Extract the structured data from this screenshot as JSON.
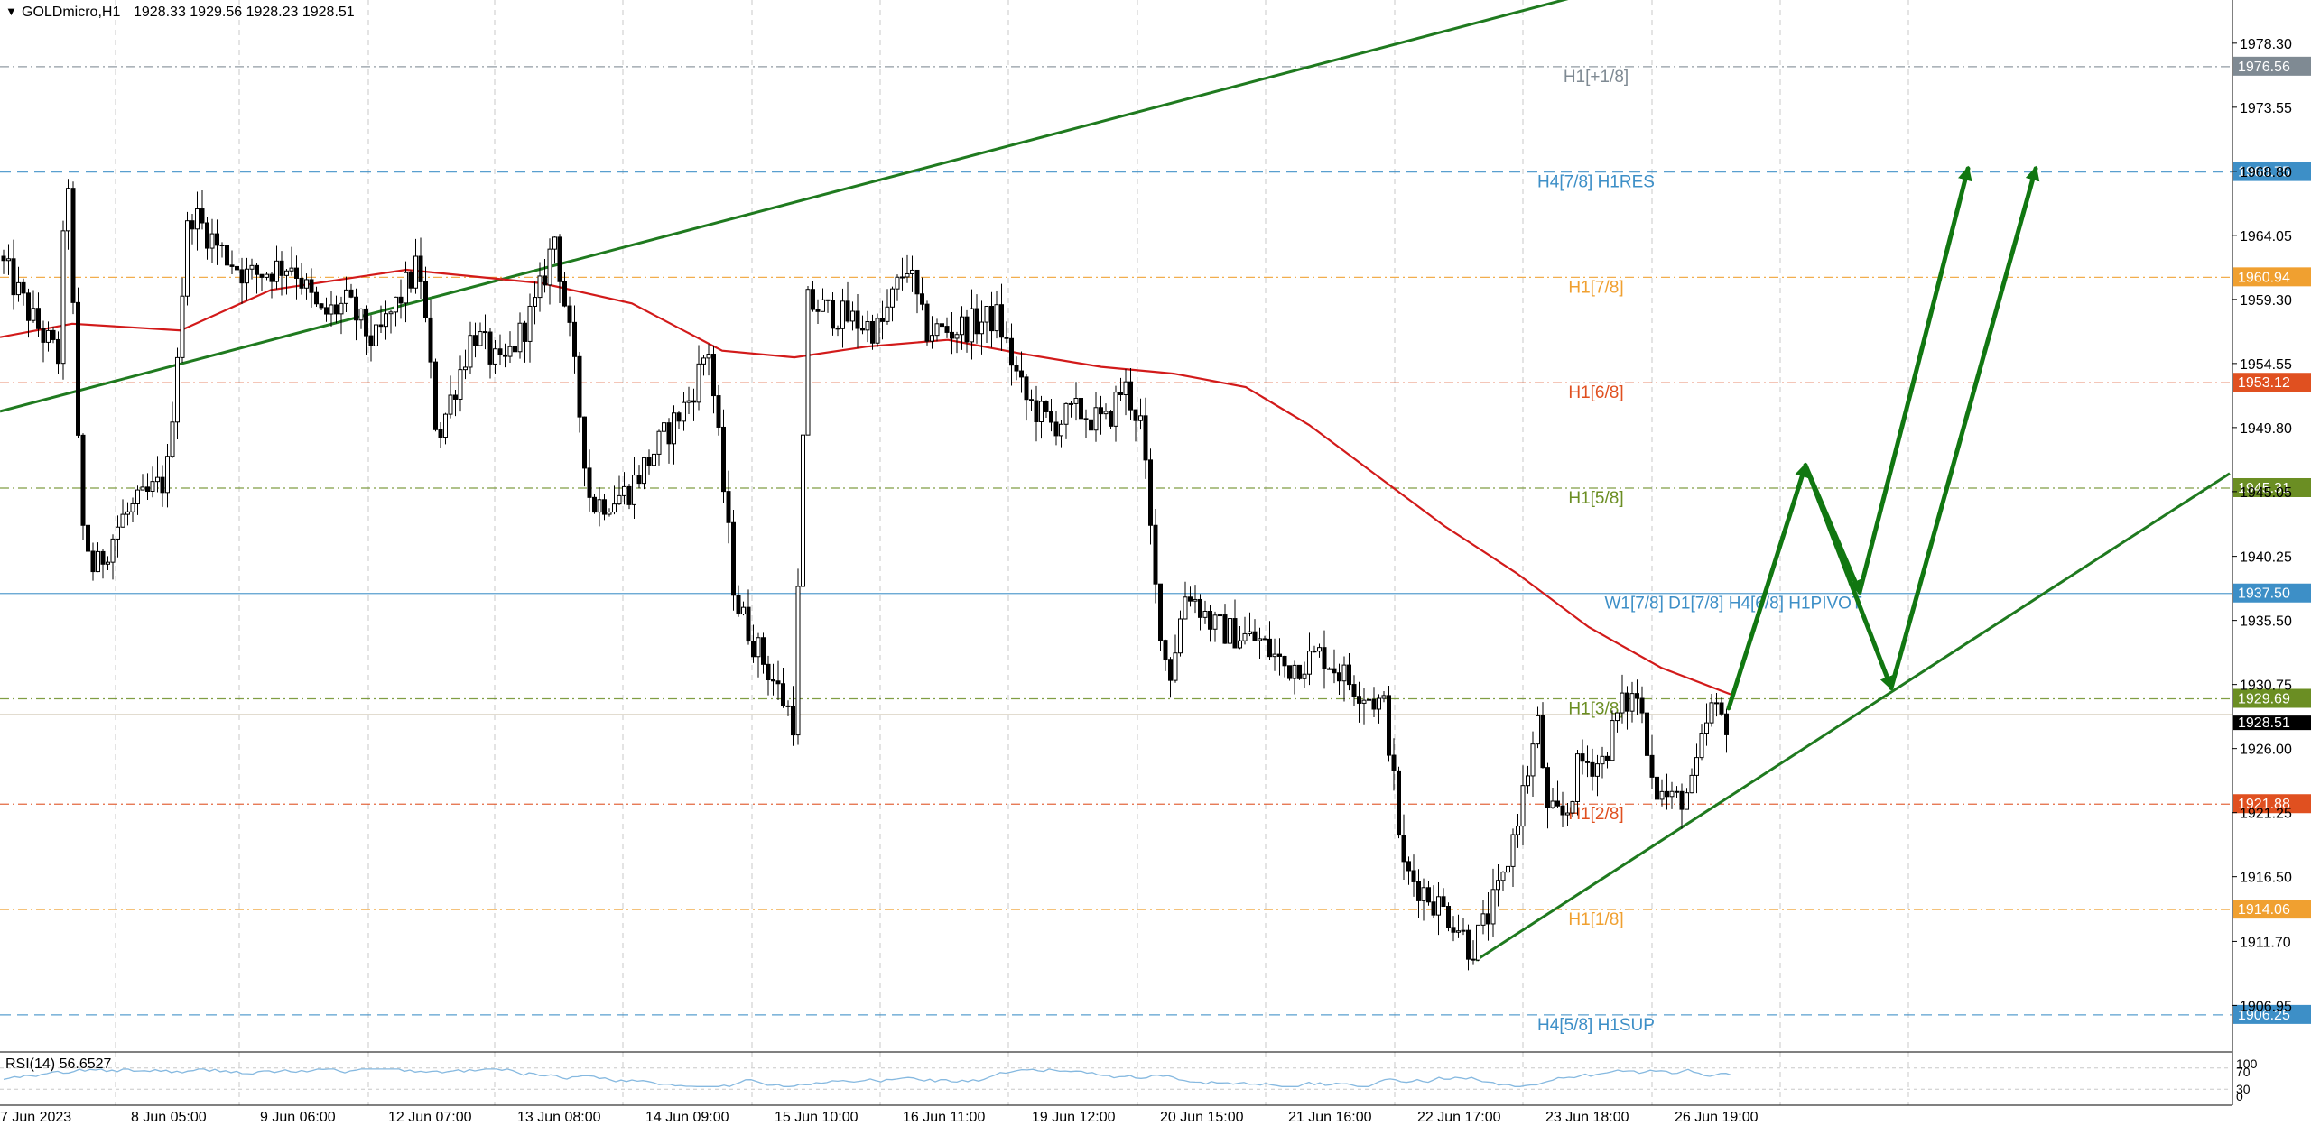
{
  "header": {
    "symbol": "GOLDmicro,H1",
    "ohlc": "1928.33 1929.56 1928.23 1928.51"
  },
  "rsi": {
    "label": "RSI(14) 56.6527",
    "levels": [
      {
        "text": "100"
      },
      {
        "text": "70"
      },
      {
        "text": "30"
      },
      {
        "text": "0"
      }
    ]
  },
  "colors": {
    "background": "#ffffff",
    "grid": "#c8c8c8",
    "candle": "#000000",
    "ma": "#d21a1a",
    "trendline": "#1f7a1f",
    "arrow": "#117711",
    "pivot": "#3d8fc7",
    "rsi_line": "#86b9e0"
  },
  "chart_data": {
    "type": "candlestick",
    "symbol": "GOLDmicro",
    "timeframe": "H1",
    "ylim": [
      1903.5,
      1981.5
    ],
    "y_ticks": [
      "1978.30",
      "1973.55",
      "1968.80",
      "1964.05",
      "1959.30",
      "1954.55",
      "1949.80",
      "1945.05",
      "1940.25",
      "1935.50",
      "1930.75",
      "1926.00",
      "1921.25",
      "1916.50",
      "1911.70",
      "1906.95"
    ],
    "x_ticks": [
      "7 Jun 2023",
      "8 Jun 05:00",
      "9 Jun 06:00",
      "12 Jun 07:00",
      "13 Jun 08:00",
      "14 Jun 09:00",
      "15 Jun 10:00",
      "16 Jun 11:00",
      "19 Jun 12:00",
      "20 Jun 15:00",
      "21 Jun 16:00",
      "22 Jun 17:00",
      "23 Jun 18:00",
      "26 Jun 19:00"
    ],
    "levels": [
      {
        "label": "H1[+1/8]",
        "value": 1976.56,
        "color": "#7f8a93",
        "price_label": "1976.56",
        "style": "dashdot"
      },
      {
        "label": "H4[7/8] H1RES",
        "value": 1968.75,
        "color": "#3d8fc7",
        "price_label": "1968.75",
        "style": "dashed"
      },
      {
        "label": "H1[7/8]",
        "value": 1960.94,
        "color": "#f0a030",
        "price_label": "1960.94",
        "style": "dashdot"
      },
      {
        "label": "H1[6/8]",
        "value": 1953.12,
        "color": "#e05020",
        "price_label": "1953.12",
        "style": "dashdot"
      },
      {
        "label": "H1[5/8]",
        "value": 1945.31,
        "color": "#6b8e23",
        "price_label": "1945.31",
        "style": "dashdot"
      },
      {
        "label": "W1[7/8] D1[7/8] H4[6/8] H1PIVOT",
        "value": 1937.5,
        "color": "#3d8fc7",
        "price_label": "1937.50",
        "style": "solid"
      },
      {
        "label": "H1[3/8]",
        "value": 1929.69,
        "color": "#6b8e23",
        "price_label": "1929.69",
        "style": "dashdot"
      },
      {
        "label": "H1[2/8]",
        "value": 1921.88,
        "color": "#e05020",
        "price_label": "1921.88",
        "style": "dashdot"
      },
      {
        "label": "H1[1/8]",
        "value": 1914.06,
        "color": "#f0a030",
        "price_label": "1914.06",
        "style": "dashdot"
      },
      {
        "label": "H4[5/8] H1SUP",
        "value": 1906.25,
        "color": "#3d8fc7",
        "price_label": "1906.25",
        "style": "dashed"
      }
    ],
    "current_price": {
      "value": 1928.51,
      "price_label": "1928.51"
    },
    "price_path": [
      [
        0,
        1963
      ],
      [
        40,
        1958
      ],
      [
        70,
        1955
      ],
      [
        80,
        1970
      ],
      [
        95,
        1943
      ],
      [
        110,
        1939
      ],
      [
        140,
        1943
      ],
      [
        190,
        1946
      ],
      [
        215,
        1966
      ],
      [
        250,
        1963
      ],
      [
        280,
        1961
      ],
      [
        330,
        1962
      ],
      [
        360,
        1958
      ],
      [
        390,
        1959
      ],
      [
        420,
        1956
      ],
      [
        470,
        1962
      ],
      [
        490,
        1949
      ],
      [
        530,
        1957
      ],
      [
        560,
        1954
      ],
      [
        600,
        1959
      ],
      [
        620,
        1964
      ],
      [
        640,
        1955
      ],
      [
        660,
        1944
      ],
      [
        700,
        1945
      ],
      [
        740,
        1949
      ],
      [
        770,
        1952
      ],
      [
        790,
        1956
      ],
      [
        820,
        1937
      ],
      [
        840,
        1934
      ],
      [
        870,
        1930
      ],
      [
        885,
        1928
      ],
      [
        900,
        1959
      ],
      [
        980,
        1957
      ],
      [
        1010,
        1962
      ],
      [
        1030,
        1957
      ],
      [
        1060,
        1957
      ],
      [
        1110,
        1958
      ],
      [
        1140,
        1952
      ],
      [
        1170,
        1950
      ],
      [
        1200,
        1951
      ],
      [
        1230,
        1950
      ],
      [
        1250,
        1953
      ],
      [
        1270,
        1950
      ],
      [
        1285,
        1938
      ],
      [
        1300,
        1931
      ],
      [
        1320,
        1938
      ],
      [
        1350,
        1935
      ],
      [
        1400,
        1934
      ],
      [
        1430,
        1932
      ],
      [
        1470,
        1933
      ],
      [
        1500,
        1931
      ],
      [
        1540,
        1929
      ],
      [
        1560,
        1917
      ],
      [
        1590,
        1915
      ],
      [
        1620,
        1913
      ],
      [
        1635,
        1911
      ],
      [
        1650,
        1913
      ],
      [
        1670,
        1916
      ],
      [
        1690,
        1922
      ],
      [
        1710,
        1928
      ],
      [
        1720,
        1921
      ],
      [
        1740,
        1921
      ],
      [
        1755,
        1925
      ],
      [
        1780,
        1925
      ],
      [
        1800,
        1929
      ],
      [
        1820,
        1930
      ],
      [
        1840,
        1923
      ],
      [
        1860,
        1922
      ],
      [
        1880,
        1923
      ],
      [
        1900,
        1929
      ],
      [
        1915,
        1928
      ]
    ],
    "moving_average": [
      [
        0,
        1956.5
      ],
      [
        80,
        1957.5
      ],
      [
        200,
        1957
      ],
      [
        300,
        1960
      ],
      [
        450,
        1961.5
      ],
      [
        600,
        1960.5
      ],
      [
        700,
        1959
      ],
      [
        800,
        1955.5
      ],
      [
        880,
        1955
      ],
      [
        960,
        1955.8
      ],
      [
        1050,
        1956.3
      ],
      [
        1130,
        1955.3
      ],
      [
        1220,
        1954.3
      ],
      [
        1300,
        1953.8
      ],
      [
        1380,
        1952.8
      ],
      [
        1450,
        1950
      ],
      [
        1520,
        1946.5
      ],
      [
        1600,
        1942.5
      ],
      [
        1680,
        1939
      ],
      [
        1760,
        1935
      ],
      [
        1840,
        1932
      ],
      [
        1918,
        1930
      ]
    ],
    "trendlines": [
      {
        "from": [
          0,
          1951
        ],
        "to": [
          1760,
          1982
        ]
      },
      {
        "from": [
          1635,
          1910.3
        ],
        "to": [
          2470,
          1946.4
        ]
      }
    ],
    "projection_arrows": [
      [
        [
          1915,
          1929
        ],
        [
          2000,
          1947
        ]
      ],
      [
        [
          2000,
          1947
        ],
        [
          2060,
          1937.6
        ]
      ],
      [
        [
          2060,
          1937.6
        ],
        [
          2180,
          1969
        ]
      ],
      [
        [
          2000,
          1947
        ],
        [
          2095,
          1930.5
        ]
      ],
      [
        [
          2095,
          1930.5
        ],
        [
          2255,
          1969
        ]
      ]
    ],
    "rsi": {
      "period": 14,
      "value": 56.6527,
      "ylim": [
        0,
        100
      ],
      "levels": [
        70,
        30
      ]
    }
  }
}
